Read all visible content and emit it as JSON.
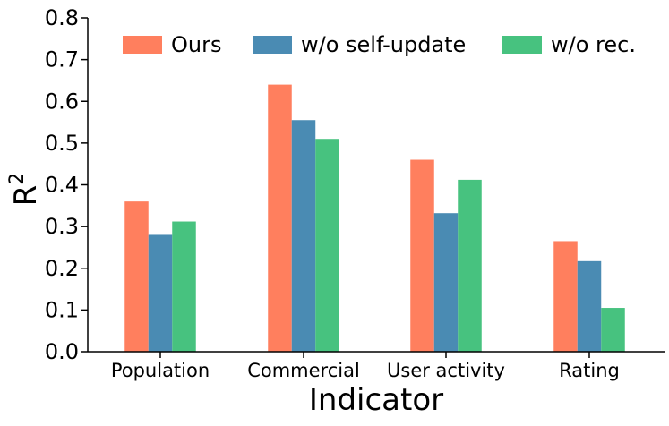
{
  "chart_data": {
    "type": "bar",
    "categories": [
      "Population",
      "Commercial",
      "User activity",
      "Rating"
    ],
    "series": [
      {
        "name": "Ours",
        "color": "#FF7F5E",
        "values": [
          0.36,
          0.64,
          0.46,
          0.265
        ]
      },
      {
        "name": "w/o self-update",
        "color": "#4A8BB3",
        "values": [
          0.28,
          0.555,
          0.332,
          0.217
        ]
      },
      {
        "name": "w/o rec.",
        "color": "#47C27F",
        "values": [
          0.312,
          0.51,
          0.412,
          0.105
        ]
      }
    ],
    "xlabel": "Indicator",
    "ylabel": {
      "base": "R",
      "superscript": "2"
    },
    "ylim": [
      0.0,
      0.8
    ],
    "yticks": [
      "0.0",
      "0.1",
      "0.2",
      "0.3",
      "0.4",
      "0.5",
      "0.6",
      "0.7",
      "0.8"
    ],
    "grid": false,
    "legend": "top"
  }
}
